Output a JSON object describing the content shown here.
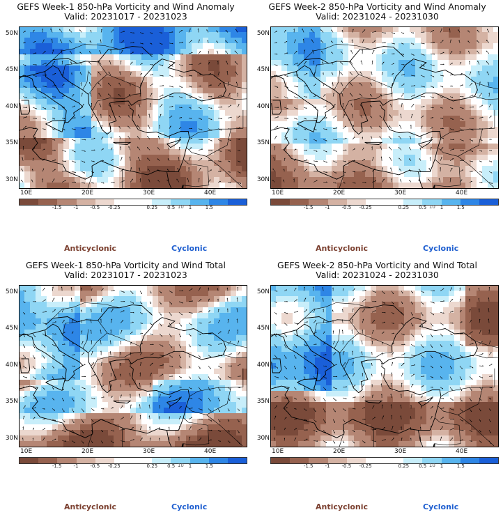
{
  "panels": [
    {
      "title": "GEFS Week-1 850-hPa Vorticity and Wind Anomaly",
      "valid": "Valid: 20231017 - 20231023",
      "pattern": "anom1"
    },
    {
      "title": "GEFS Week-2 850-hPa Vorticity and Wind Anomaly",
      "valid": "Valid: 20231024 - 20231030",
      "pattern": "anom2"
    },
    {
      "title": "GEFS Week-1 850-hPa Vorticity and Wind Total",
      "valid": "Valid: 20231017 - 20231023",
      "pattern": "tot1"
    },
    {
      "title": "GEFS Week-2 850-hPa Vorticity and Wind Total",
      "valid": "Valid: 20231024 - 20231030",
      "pattern": "tot2"
    }
  ],
  "lat_labels": [
    "50N",
    "45N",
    "40N",
    "35N",
    "30N"
  ],
  "lon_labels": [
    "10E",
    "20E",
    "30E",
    "40E"
  ],
  "colorbar": {
    "labels": [
      "-1.5",
      "-1",
      "-0.5",
      "-0.25",
      "0.25",
      "0.5",
      "1",
      "1.5"
    ],
    "colors": [
      "#7a4a3a",
      "#96624f",
      "#b58674",
      "#d4b2a3",
      "#ecd8cf",
      "#ffffff",
      "#ffffff",
      "#c8eefa",
      "#8fd6f4",
      "#58b4ee",
      "#2e86e6",
      "#1a5fd8"
    ]
  },
  "scale_note": "10",
  "legend": {
    "anticyclonic": "Anticyclonic",
    "cyclonic": "Cyclonic"
  }
}
